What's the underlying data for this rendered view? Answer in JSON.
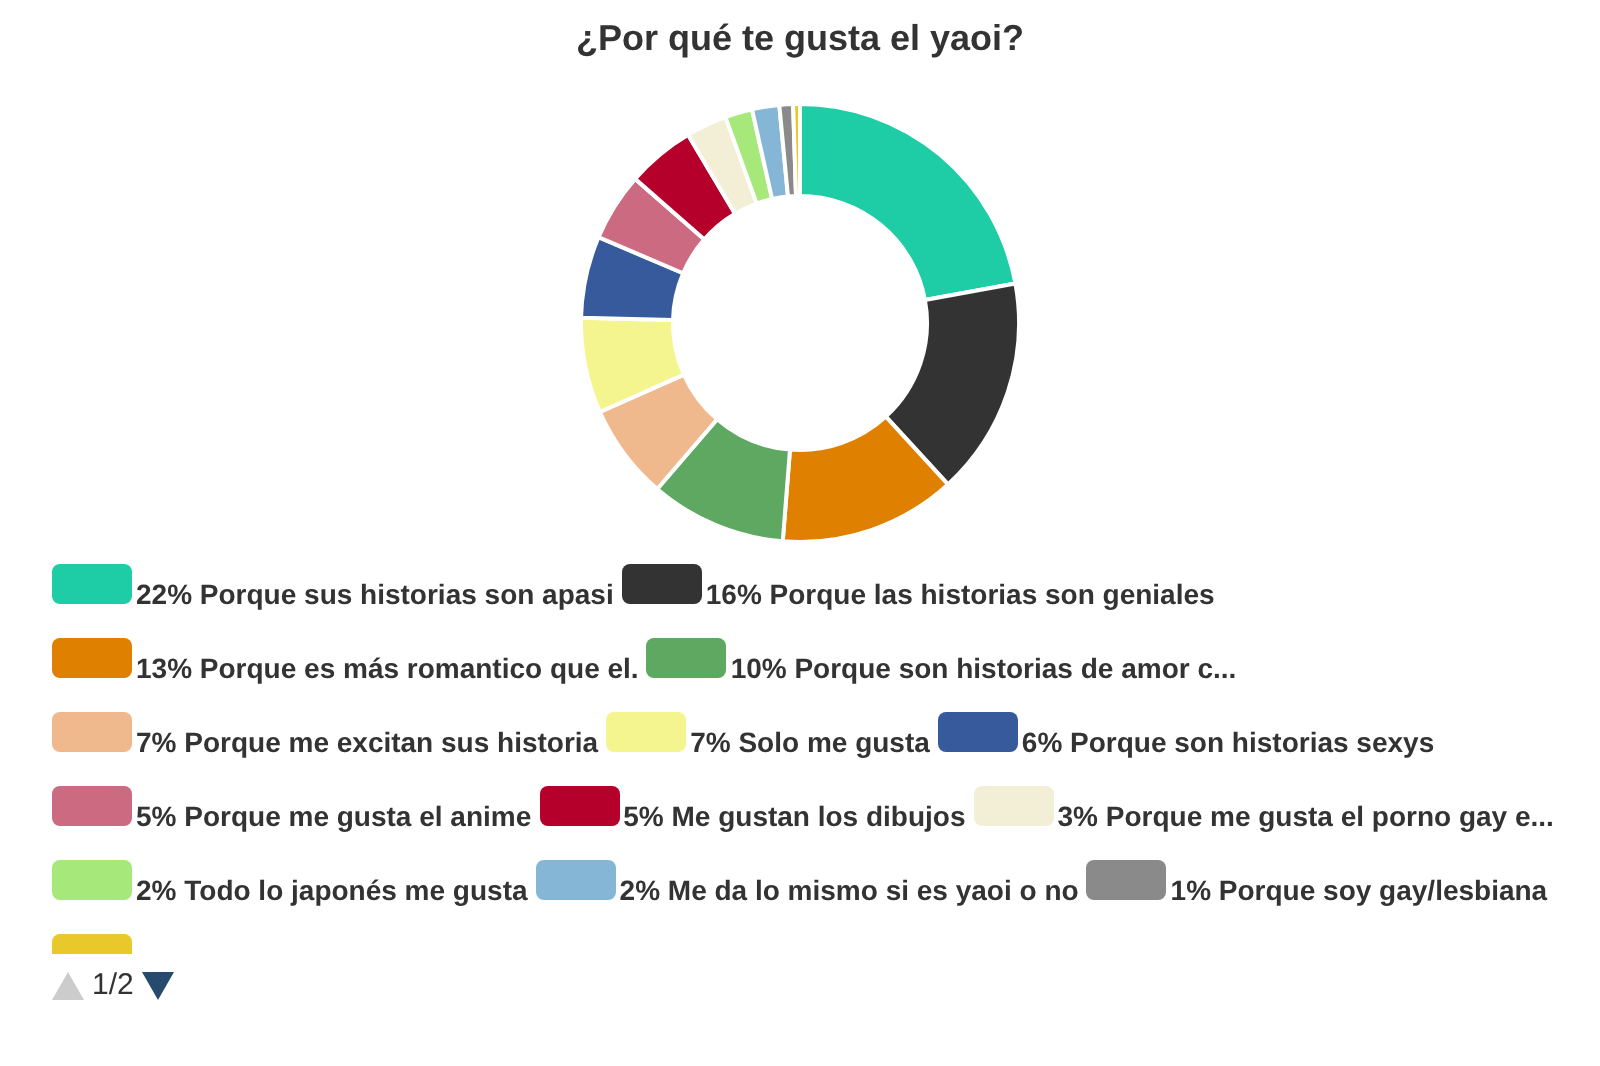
{
  "chart_data": {
    "type": "donut",
    "title": "¿Por qué te gusta el yaoi?",
    "categories": [
      "Porque sus historias son apasi",
      "Porque las historias son geniales",
      "Porque es más romantico que el.",
      "Porque son historias de amor c...",
      "Porque me excitan sus historia",
      "Solo me gusta",
      "Porque son historias sexys",
      "Porque me gusta el anime",
      "Me gustan los dibujos",
      "Porque me gusta el porno gay e...",
      "Todo lo japonés me gusta",
      "Me da lo mismo si es yaoi o no",
      "Porque soy gay/lesbiana",
      null
    ],
    "values": [
      22,
      16,
      13,
      10,
      7,
      7,
      6,
      5,
      5,
      3,
      2,
      2,
      1,
      0.5
    ],
    "value_labels": [
      "22%",
      "16%",
      "13%",
      "10%",
      "7%",
      "7%",
      "6%",
      "5%",
      "5%",
      "3%",
      "2%",
      "2%",
      "1%",
      null
    ],
    "colors": [
      "#1ecca5",
      "#333333",
      "#e08000",
      "#5ea862",
      "#f0b98d",
      "#f5f590",
      "#375a9c",
      "#cb6a80",
      "#b5002b",
      "#f3efd6",
      "#a6e87a",
      "#86b6d6",
      "#8a8a8a",
      "#e8c82a"
    ],
    "legend": "bottom",
    "annotations": [
      "1/2"
    ]
  }
}
